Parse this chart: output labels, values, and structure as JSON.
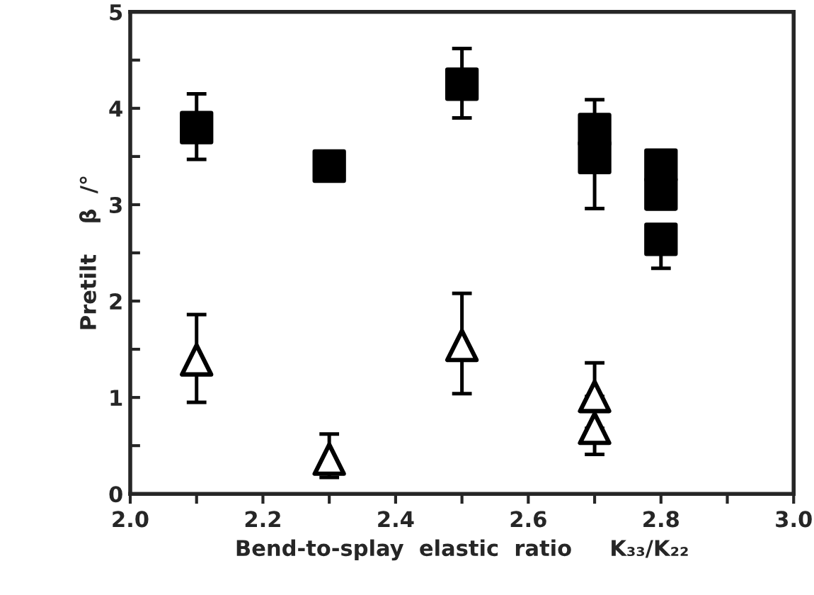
{
  "chart_data": {
    "type": "scatter",
    "xlabel": "Bend-to-splay  elastic  ratio     K₃₃/K₂₂",
    "ylabel": "Pretilt    β  /°",
    "xlim": [
      2.0,
      3.0
    ],
    "ylim": [
      0,
      5
    ],
    "xticks": [
      {
        "value": 2.0,
        "label": "2.0"
      },
      {
        "value": 2.1,
        "label": null
      },
      {
        "value": 2.2,
        "label": "2.2"
      },
      {
        "value": 2.3,
        "label": null
      },
      {
        "value": 2.4,
        "label": "2.4"
      },
      {
        "value": 2.5,
        "label": null
      },
      {
        "value": 2.6,
        "label": "2.6"
      },
      {
        "value": 2.7,
        "label": null
      },
      {
        "value": 2.8,
        "label": "2.8"
      },
      {
        "value": 2.9,
        "label": null
      },
      {
        "value": 3.0,
        "label": "3.0"
      }
    ],
    "yticks": [
      0,
      {
        "value": 0.5,
        "label": null
      },
      1,
      {
        "value": 1.5,
        "label": null
      },
      2,
      {
        "value": 2.5,
        "label": null
      },
      3,
      {
        "value": 3.5,
        "label": null
      },
      4,
      {
        "value": 4.5,
        "label": null
      },
      5
    ],
    "grid": false,
    "legend": false,
    "series": [
      {
        "color": "#000000",
        "marker": "square",
        "x": [
          2.1,
          2.3,
          2.5,
          2.7,
          2.7,
          2.8,
          2.8,
          2.8
        ],
        "values": [
          3.8,
          3.4,
          4.25,
          3.78,
          3.49,
          3.41,
          3.11,
          2.64
        ],
        "errors": [
          [
            3.47,
            4.15
          ],
          null,
          [
            3.9,
            4.62
          ],
          [
            3.78,
            4.09
          ],
          [
            2.96,
            3.49
          ],
          null,
          null,
          [
            2.34,
            2.64
          ]
        ]
      },
      {
        "color": "#000000",
        "marker": "triangle",
        "x": [
          2.1,
          2.3,
          2.5,
          2.7,
          2.7
        ],
        "values": [
          1.39,
          0.36,
          1.54,
          1.01,
          0.68
        ],
        "errors": [
          [
            0.95,
            1.86
          ],
          [
            0.17,
            0.62
          ],
          [
            1.04,
            2.08
          ],
          [
            1.01,
            1.36
          ],
          [
            0.41,
            0.68
          ]
        ]
      }
    ]
  }
}
